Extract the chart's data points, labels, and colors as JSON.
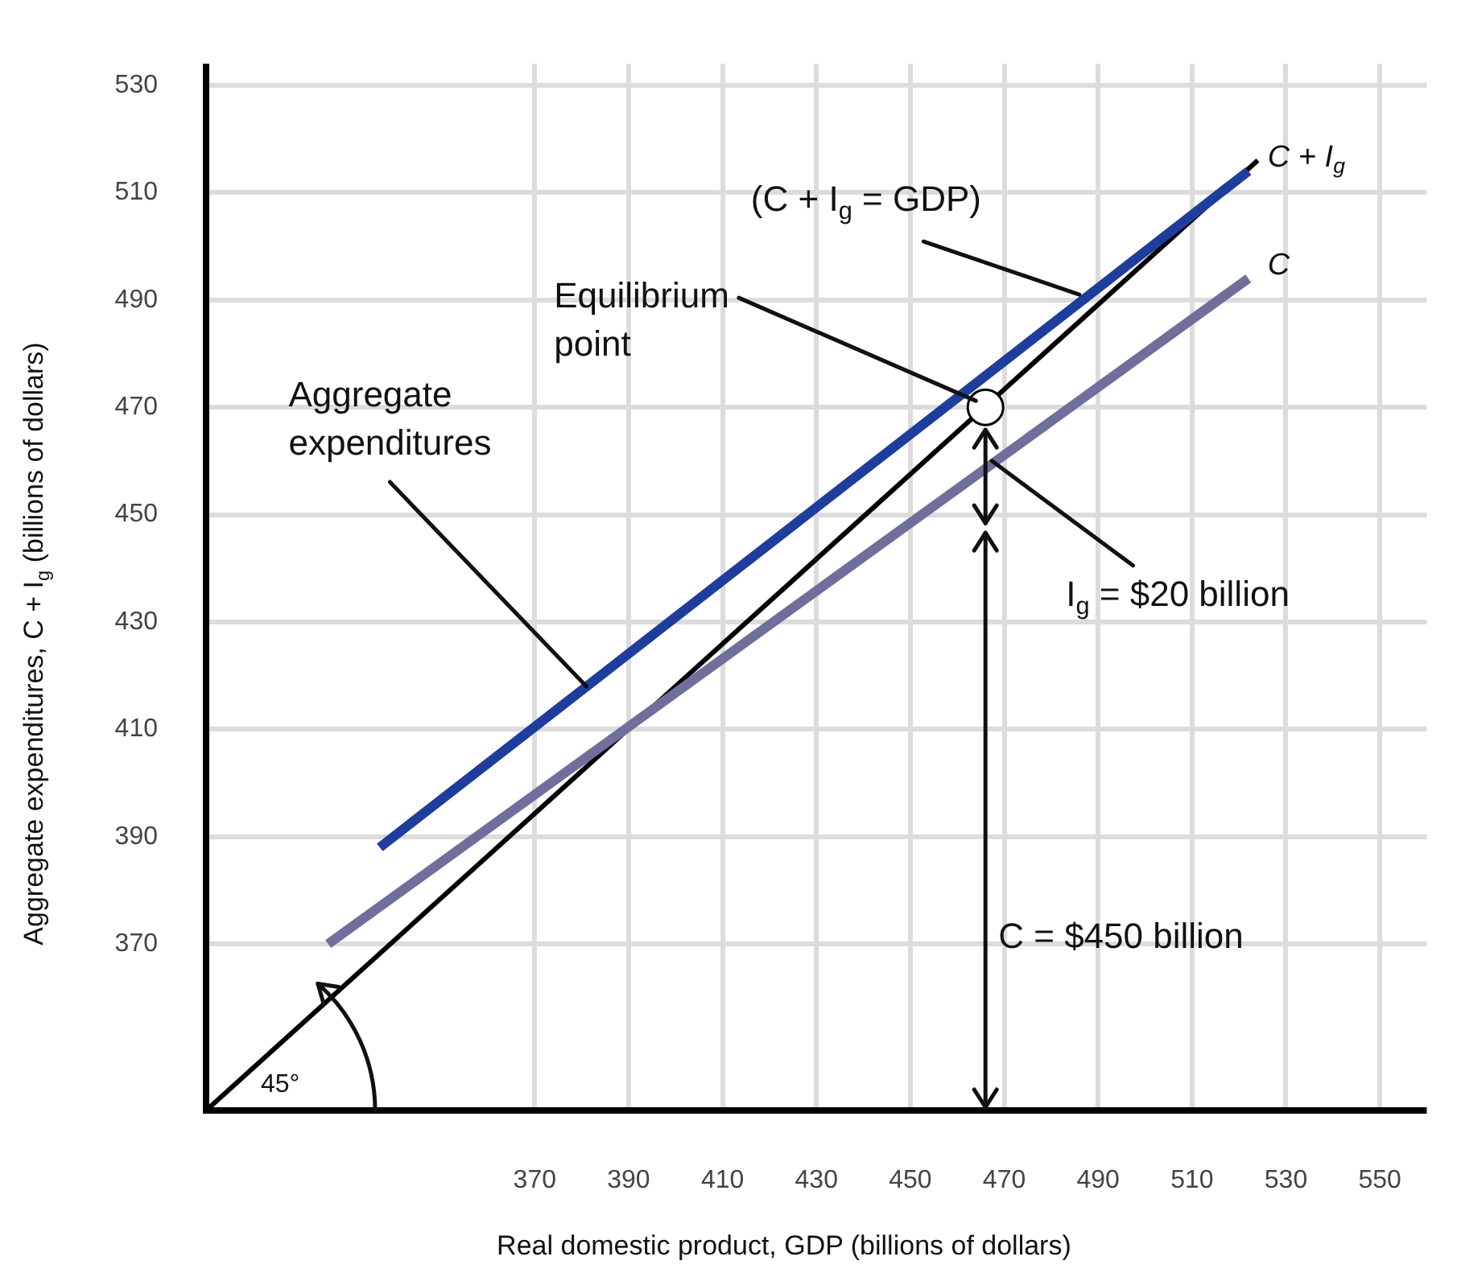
{
  "chart_data": {
    "type": "line",
    "xlabel": "Real domestic product, GDP (billions of dollars)",
    "ylabel": "Aggregate expenditures, C + I$_{g}$ (billions of dollars)",
    "xlim": [
      300,
      560
    ],
    "xticks": [
      370,
      390,
      410,
      430,
      450,
      470,
      490,
      510,
      530,
      550
    ],
    "ylim": [
      339,
      534
    ],
    "yticks": [
      370,
      390,
      410,
      430,
      450,
      470,
      490,
      510,
      530
    ],
    "grid": true,
    "legend": false,
    "marker": "none",
    "line_style": "solid",
    "series": [
      {
        "color": "#000000",
        "x": [
          300,
          524
        ],
        "values": [
          339,
          516
        ]
      },
      {
        "name": "C + I$_{g}$",
        "color": "#1f3d9c",
        "x": [
          337,
          522
        ],
        "values": [
          388,
          514
        ]
      },
      {
        "name": "C",
        "color": "#6f6f9c",
        "x": [
          326,
          522
        ],
        "values": [
          370,
          494
        ]
      },
      {
        "type": "scatter",
        "marker": "circle",
        "color": "#ffffff",
        "x": [
          466
        ],
        "values": [
          470
        ]
      }
    ],
    "annotations": [
      {
        "text": "Equilibrium point",
        "x": 466,
        "y": 470
      },
      {
        "text": "Aggregate expenditures",
        "x": 381,
        "y": 418
      },
      {
        "text": "(C + I$_{g}$ = GDP)",
        "x": 486,
        "y": 491
      },
      "C = $450 billion",
      {
        "text": "I$_{g}$ = $20 billion",
        "x": 466,
        "y": 460
      },
      "45°"
    ]
  }
}
